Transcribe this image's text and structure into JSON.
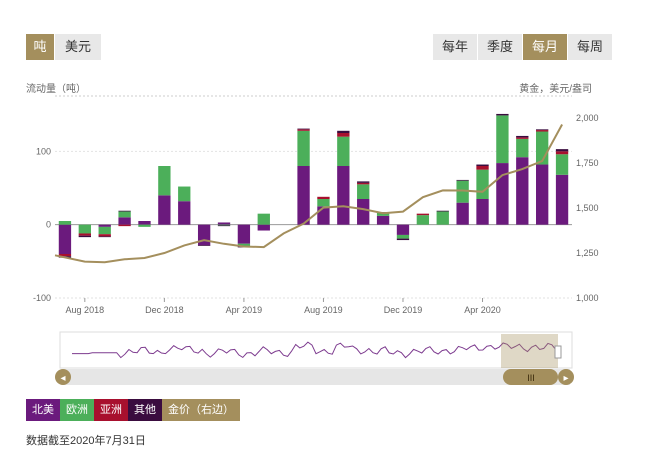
{
  "unit_toggle": {
    "options": [
      "吨",
      "美元"
    ],
    "selected": "吨"
  },
  "period_toggle": {
    "options": [
      "每年",
      "季度",
      "每月",
      "每周"
    ],
    "selected": "每月"
  },
  "left_axis_title": "流动量（吨）",
  "right_axis_title": "黄金，美元/盎司",
  "legend": [
    {
      "label": "北美",
      "color": "#6b1a7d"
    },
    {
      "label": "欧洲",
      "color": "#4caf5a"
    },
    {
      "label": "亚洲",
      "color": "#a8102e"
    },
    {
      "label": "其他",
      "color": "#3a0c3f"
    },
    {
      "label": "金价（右边）",
      "color": "#a48f5d"
    }
  ],
  "footnote": "数据截至2020年7月31日",
  "chart_data": {
    "type": "bar",
    "stacked": true,
    "categories": [
      "2018-07",
      "2018-08",
      "2018-09",
      "2018-10",
      "2018-11",
      "2018-12",
      "2019-01",
      "2019-02",
      "2019-03",
      "2019-04",
      "2019-05",
      "2019-06",
      "2019-07",
      "2019-08",
      "2019-09",
      "2019-10",
      "2019-11",
      "2019-12",
      "2019-01b",
      "2020-01",
      "2020-02",
      "2020-03",
      "2020-04",
      "2020-05",
      "2020-06",
      "2020-07"
    ],
    "x_tick_labels": [
      "Aug 2018",
      "Dec 2018",
      "Apr 2019",
      "Aug 2019",
      "Dec 2019",
      "Apr 2020"
    ],
    "series": [
      {
        "name": "北美",
        "values": [
          -40,
          0,
          -3,
          10,
          5,
          40,
          32,
          -28,
          3,
          -26,
          -8,
          0,
          80,
          25,
          80,
          35,
          12,
          -14,
          0,
          0,
          30,
          35,
          84,
          92,
          82,
          68
        ]
      },
      {
        "name": "欧洲",
        "values": [
          5,
          -12,
          -10,
          8,
          -3,
          40,
          20,
          0,
          -1,
          -3,
          15,
          0,
          48,
          10,
          40,
          20,
          4,
          -5,
          13,
          18,
          30,
          40,
          65,
          25,
          45,
          28
        ]
      },
      {
        "name": "亚洲",
        "values": [
          -3,
          -3,
          -3,
          -2,
          0,
          0,
          0,
          0,
          0,
          0,
          0,
          0,
          2,
          3,
          5,
          2,
          0,
          0,
          2,
          0,
          0,
          5,
          0,
          2,
          2,
          4
        ]
      },
      {
        "name": "其他",
        "values": [
          -2,
          -2,
          -1,
          1,
          0,
          0,
          0,
          -1,
          -1,
          -2,
          0,
          0,
          1,
          0,
          3,
          2,
          1,
          -2,
          0,
          1,
          1,
          2,
          2,
          2,
          1,
          3
        ]
      }
    ],
    "line_series": {
      "name": "金价（右边）",
      "axis": "right",
      "values": [
        1237,
        1202,
        1199,
        1215,
        1222,
        1250,
        1292,
        1321,
        1301,
        1286,
        1283,
        1359,
        1413,
        1502,
        1510,
        1494,
        1471,
        1480,
        1560,
        1598,
        1597,
        1590,
        1683,
        1716,
        1761,
        1964
      ]
    },
    "y_left": {
      "ticks": [
        -100,
        0,
        100
      ],
      "range": [
        -100,
        170
      ]
    },
    "y_right": {
      "ticks": [
        1000,
        1250,
        1500,
        1750,
        2000
      ],
      "range": [
        1000,
        2100
      ]
    },
    "grid": true
  },
  "navigator": {
    "left_arrow": "◂",
    "right_arrow": "▸",
    "handle_label": "III"
  }
}
